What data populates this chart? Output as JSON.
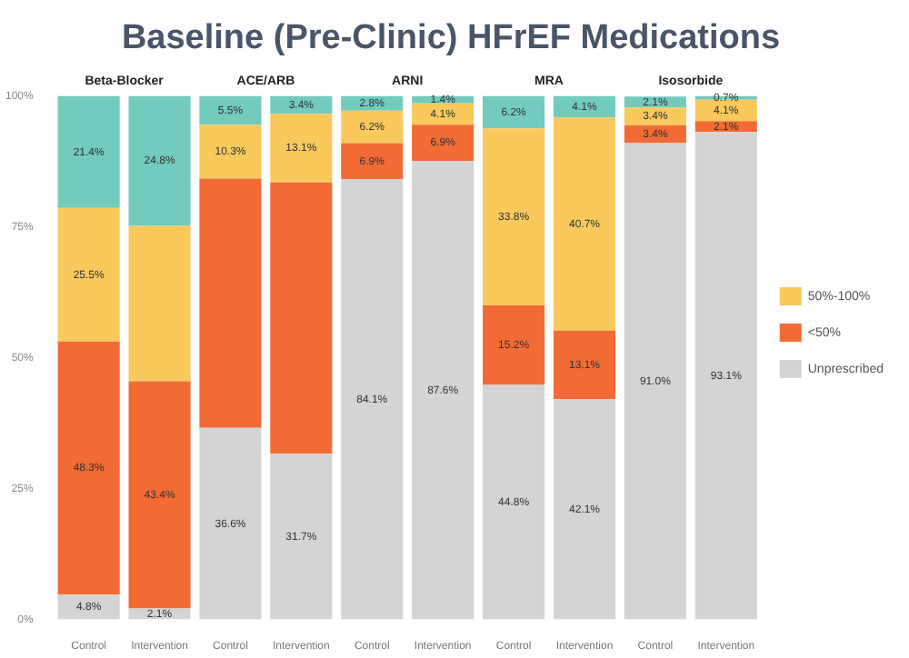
{
  "chart_data": {
    "type": "bar",
    "stacked": true,
    "title": "Baseline (Pre-Clinic) HFrEF Medications",
    "categories": [
      "Control",
      "Intervention",
      "Control",
      "Intervention",
      "Control",
      "Intervention",
      "Control",
      "Intervention",
      "Control",
      "Intervention"
    ],
    "annotations": [
      "Beta-Blocker",
      "ACE/ARB",
      "ARNI",
      "MRA",
      "Isosorbide"
    ],
    "series": [
      {
        "name": "Unprescribed",
        "color": "#d4d4d4",
        "values": [
          4.8,
          2.1,
          36.6,
          31.7,
          84.1,
          87.6,
          44.8,
          42.1,
          91.0,
          93.1
        ],
        "value_labels": [
          "4.8%",
          "2.1%",
          "36.6%",
          "31.7%",
          "84.1%",
          "87.6%",
          "44.8%",
          "42.1%",
          "91.0%",
          "93.1%"
        ]
      },
      {
        "name": "<50%",
        "color": "#f26b35",
        "values": [
          48.3,
          43.4,
          47.6,
          51.8,
          6.9,
          6.9,
          15.2,
          13.1,
          3.4,
          2.1
        ],
        "value_labels": [
          "48.3%",
          "43.4%",
          null,
          null,
          "6.9%",
          "6.9%",
          "15.2%",
          "13.1%",
          "3.4%",
          "2.1%"
        ]
      },
      {
        "name": "50%-100%",
        "color": "#f9c95c",
        "values": [
          25.5,
          29.7,
          10.3,
          13.1,
          6.2,
          4.1,
          33.8,
          40.7,
          3.4,
          4.1
        ],
        "value_labels": [
          "25.5%",
          null,
          "10.3%",
          "13.1%",
          "6.2%",
          "4.1%",
          "33.8%",
          "40.7%",
          "3.4%",
          "4.1%"
        ]
      },
      {
        "color": "#72cbbd",
        "values": [
          21.4,
          24.8,
          5.5,
          3.4,
          2.8,
          1.4,
          6.2,
          4.1,
          2.1,
          0.7
        ],
        "value_labels": [
          "21.4%",
          "24.8%",
          "5.5%",
          "3.4%",
          "2.8%",
          "1.4%",
          "6.2%",
          "4.1%",
          "2.1%",
          "0.7%"
        ]
      }
    ],
    "ylim": [
      0,
      100
    ],
    "yticks": [
      {
        "value": 0,
        "label": "0%"
      },
      {
        "value": 25,
        "label": "25%"
      },
      {
        "value": 50,
        "label": "50%"
      },
      {
        "value": 75,
        "label": "75%"
      },
      {
        "value": 100,
        "label": "100%"
      }
    ],
    "legend": "right"
  }
}
